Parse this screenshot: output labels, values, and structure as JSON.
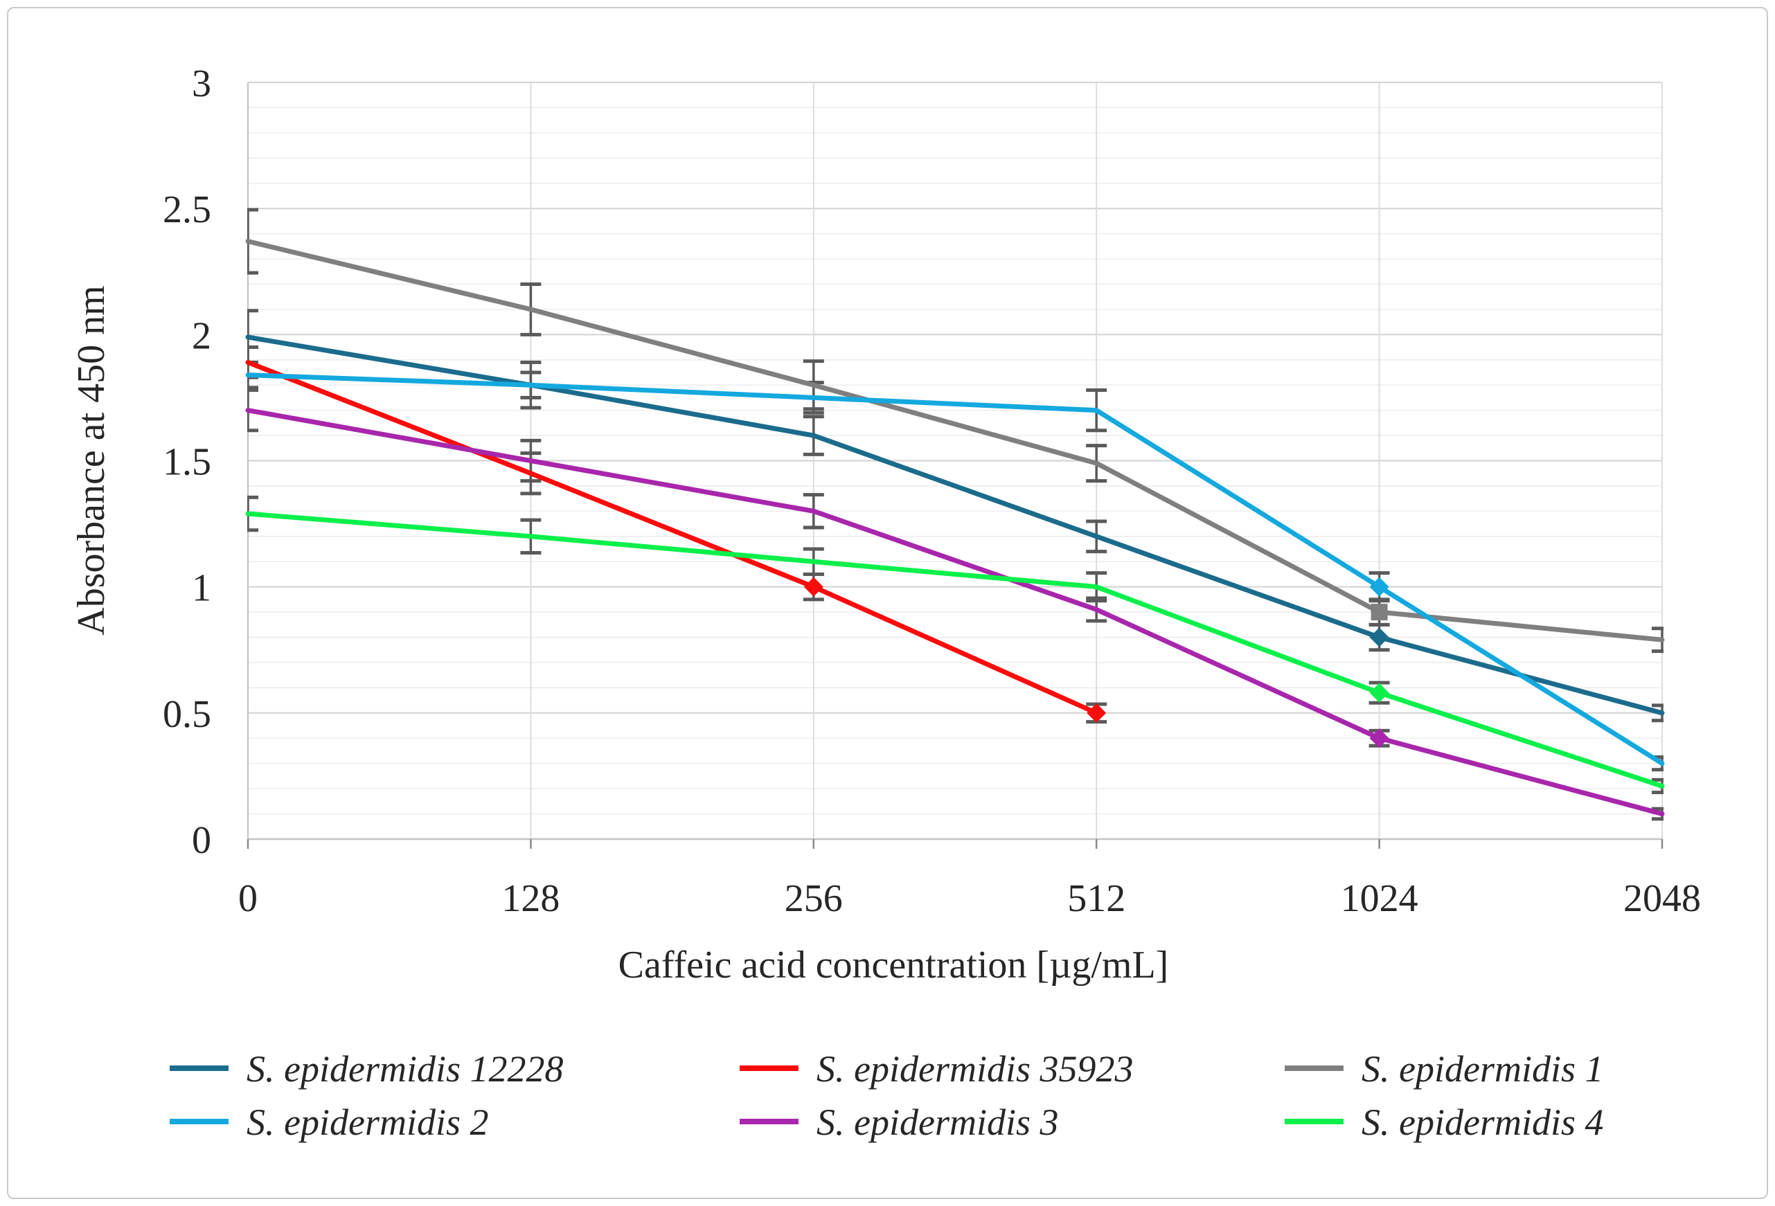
{
  "chart_data": {
    "type": "line",
    "title": "",
    "xlabel": "Caffeic acid concentration [µg/mL]",
    "ylabel": "Absorbance at 450 nm",
    "categories": [
      0,
      128,
      256,
      512,
      1024,
      2048
    ],
    "x_tick_labels": [
      "0",
      "128",
      "256",
      "512",
      "1024",
      "2048"
    ],
    "y_ticks": [
      0,
      0.5,
      1,
      1.5,
      2,
      2.5,
      3
    ],
    "y_tick_labels": [
      "0",
      "0.5",
      "1",
      "1.5",
      "2",
      "2.5",
      "3"
    ],
    "ylim": [
      0,
      3
    ],
    "grid": {
      "horizontal_minor_step": 0.1,
      "horizontal_major_step": 0.5,
      "vertical_at_categories": true
    },
    "legend_position": "bottom",
    "error_bar_color": "#5a5a5a",
    "series": [
      {
        "name": "S. epidermidis 12228",
        "color": "#1B6B8C",
        "marker": "diamond",
        "marker_point_indices": [
          4
        ],
        "values": [
          1.99,
          1.8,
          1.6,
          1.2,
          0.8,
          0.5
        ],
        "errors": [
          0.105,
          0.09,
          0.075,
          0.06,
          0.05,
          0.03
        ]
      },
      {
        "name": "S. epidermidis 35923",
        "color": "#F80C0C",
        "marker": "diamond",
        "marker_point_indices": [
          2,
          3
        ],
        "values": [
          1.89,
          1.45,
          1.0,
          0.5,
          null,
          null
        ],
        "errors": [
          0.06,
          0.08,
          0.05,
          0.035,
          null,
          null
        ]
      },
      {
        "name": "S. epidermidis 1",
        "color": "#7F7F7F",
        "marker": "square",
        "marker_point_indices": [
          4
        ],
        "values": [
          2.37,
          2.1,
          1.8,
          1.49,
          0.9,
          0.79
        ],
        "errors": [
          0.125,
          0.1,
          0.095,
          0.07,
          0.05,
          0.045
        ]
      },
      {
        "name": "S. epidermidis 2",
        "color": "#14A9DE",
        "marker": "diamond",
        "marker_point_indices": [
          4
        ],
        "values": [
          1.84,
          1.8,
          1.75,
          1.7,
          1.0,
          0.3
        ],
        "errors": [
          0.05,
          0.05,
          0.06,
          0.08,
          0.055,
          0.025
        ]
      },
      {
        "name": "S. epidermidis 3",
        "color": "#A826AC",
        "marker": "diamond",
        "marker_point_indices": [
          4
        ],
        "values": [
          1.7,
          1.5,
          1.3,
          0.91,
          0.4,
          0.1
        ],
        "errors": [
          0.08,
          0.08,
          0.065,
          0.045,
          0.03,
          0.02
        ]
      },
      {
        "name": "S. epidermidis 4",
        "color": "#0BEF4B",
        "marker": "diamond",
        "marker_point_indices": [
          4
        ],
        "values": [
          1.29,
          1.2,
          1.1,
          1.0,
          0.58,
          0.21
        ],
        "errors": [
          0.065,
          0.065,
          0.05,
          0.055,
          0.04,
          0.025
        ]
      }
    ]
  }
}
